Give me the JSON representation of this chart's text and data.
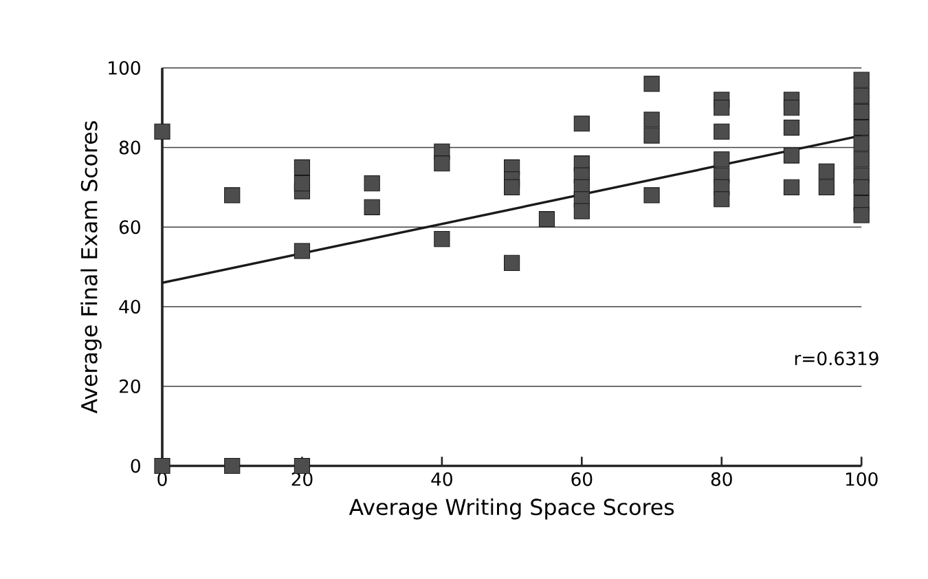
{
  "chart_data": {
    "type": "scatter",
    "xlabel": "Average Writing Space Scores",
    "ylabel": "Average Final Exam Scores",
    "annotations": [
      "r=0.6319"
    ],
    "xlim": [
      0,
      100
    ],
    "ylim": [
      0,
      100
    ],
    "xticks": [
      0,
      20,
      40,
      60,
      80,
      100
    ],
    "yticks": [
      0,
      20,
      40,
      60,
      80,
      100
    ],
    "grid": "y",
    "marker": "square",
    "series": [
      {
        "color": "#4d4d4d",
        "x": [
          0,
          0,
          10,
          10,
          20,
          20,
          20,
          20,
          20,
          30,
          30,
          40,
          40,
          40,
          50,
          50,
          50,
          50,
          55,
          60,
          60,
          60,
          60,
          60,
          60,
          70,
          70,
          70,
          70,
          80,
          80,
          80,
          80,
          80,
          80,
          80,
          90,
          90,
          90,
          90,
          90,
          95,
          95,
          100,
          100,
          100,
          100,
          100,
          100,
          100,
          100,
          100,
          100
        ],
        "values": [
          84,
          0,
          68,
          0,
          75,
          69,
          71,
          54,
          0,
          71,
          65,
          79,
          76,
          57,
          75,
          72,
          70,
          51,
          62,
          86,
          76,
          73,
          70,
          67,
          64,
          96,
          87,
          83,
          68,
          92,
          90,
          84,
          77,
          73,
          70,
          67,
          92,
          90,
          85,
          78,
          70,
          74,
          70,
          97,
          93,
          89,
          85,
          81,
          77,
          73,
          70,
          66,
          63
        ]
      },
      {
        "type": "line",
        "color": "#1a1a1a",
        "marker": "none",
        "x": [
          0,
          100
        ],
        "values": [
          46,
          83
        ]
      }
    ]
  }
}
